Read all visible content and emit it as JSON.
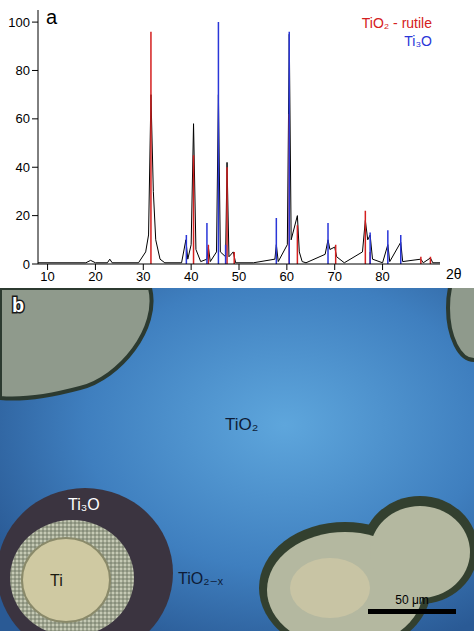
{
  "chart_data": {
    "type": "line",
    "title": "a",
    "x_label": "2θ",
    "xlim": [
      8,
      92
    ],
    "xticks": [
      10,
      20,
      30,
      40,
      50,
      60,
      70,
      80
    ],
    "ylim": [
      0,
      105
    ],
    "yticks": [
      0,
      20,
      40,
      60,
      80,
      100
    ],
    "grid": false,
    "legend": "upper right",
    "series": [
      {
        "type": "line",
        "color": "#000000",
        "x": [
          8,
          18,
          19,
          20,
          22.5,
          23,
          23.5,
          29,
          30.5,
          31.1,
          31.6,
          32.1,
          32.6,
          33.5,
          34.5,
          38,
          38.9,
          39.3,
          40.0,
          40.5,
          41.0,
          42,
          43.3,
          43.6,
          44,
          45.3,
          45.7,
          46.1,
          47.2,
          47.5,
          47.9,
          48.8,
          49.3,
          53,
          57.5,
          57.8,
          58.2,
          60.1,
          60.5,
          60.9,
          62.2,
          62.6,
          63.2,
          64,
          68,
          68.6,
          69.0,
          70.0,
          70.4,
          72,
          75.8,
          76.4,
          76.9,
          77.4,
          77.9,
          80,
          81.1,
          81.5,
          83.8,
          84.2,
          88,
          88.5,
          90,
          90.5,
          92
        ],
        "values": [
          0.5,
          0.5,
          1.5,
          0.5,
          0.5,
          2,
          0.5,
          0.5,
          5,
          12,
          70,
          30,
          10,
          2,
          0.5,
          0.5,
          10,
          2,
          8,
          58,
          6,
          1,
          2,
          7,
          1,
          5,
          70,
          5,
          3,
          42,
          3,
          5,
          0.5,
          0.5,
          2,
          8,
          1,
          8,
          95,
          10,
          20,
          5,
          1,
          0.5,
          4,
          10,
          6,
          7,
          3,
          0.5,
          5,
          18,
          10,
          12,
          2,
          0.5,
          8,
          1,
          9,
          1,
          2,
          0.5,
          2.5,
          0.5,
          0.5
        ]
      },
      {
        "type": "stick",
        "name": "TiO₂ - rutile",
        "color": "#d42020",
        "x": [
          31.6,
          40.5,
          43.6,
          47.5,
          49.0,
          60.5,
          62.2,
          70.2,
          76.4,
          77.4,
          88.0,
          90.0
        ],
        "values": [
          96,
          45,
          8,
          40,
          5,
          62,
          16,
          8,
          22,
          5,
          3,
          3
        ]
      },
      {
        "type": "stick",
        "name": "Ti₃O",
        "color": "#2a36d8",
        "x": [
          39.0,
          43.3,
          45.7,
          47.2,
          57.8,
          60.5,
          68.6,
          77.4,
          81.1,
          83.8
        ],
        "values": [
          12,
          17,
          100,
          8,
          19,
          96,
          17,
          13,
          14,
          12
        ]
      }
    ]
  },
  "micrograph": {
    "letter": "b",
    "labels": {
      "matrix": "TiO₂",
      "shell": "Ti₃O",
      "core": "Ti",
      "rim": "TiO₂₋ₓ"
    },
    "scale_bar": "50 μm"
  }
}
